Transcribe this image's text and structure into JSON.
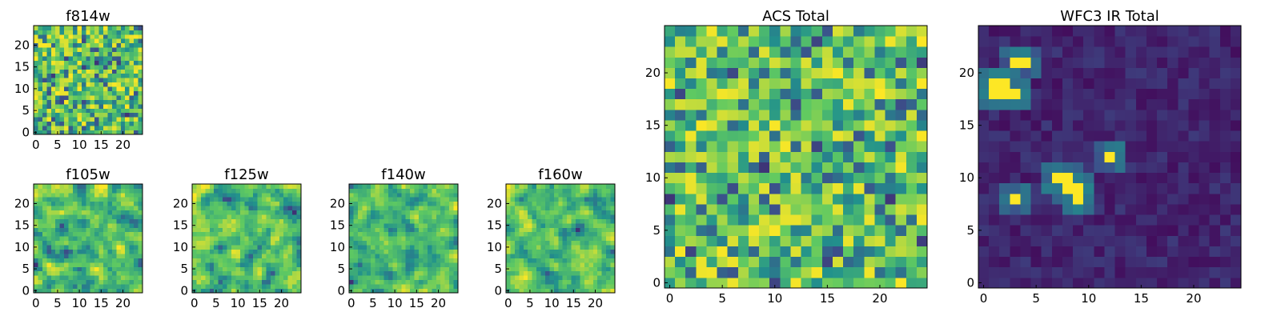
{
  "chart_data": [
    {
      "type": "heatmap",
      "title": "f814w",
      "colormap": "viridis",
      "xlim": [
        0,
        24
      ],
      "ylim": [
        0,
        24
      ],
      "x_ticks": [
        "0",
        "5",
        "10",
        "15",
        "20"
      ],
      "y_ticks": [
        "0",
        "5",
        "10",
        "15",
        "20"
      ]
    },
    {
      "type": "heatmap",
      "title": "f105w",
      "colormap": "viridis",
      "xlim": [
        0,
        24
      ],
      "ylim": [
        0,
        24
      ],
      "x_ticks": [
        "0",
        "5",
        "10",
        "15",
        "20"
      ],
      "y_ticks": [
        "0",
        "5",
        "10",
        "15",
        "20"
      ]
    },
    {
      "type": "heatmap",
      "title": "f125w",
      "colormap": "viridis",
      "xlim": [
        0,
        24
      ],
      "ylim": [
        0,
        24
      ],
      "x_ticks": [
        "0",
        "5",
        "10",
        "15",
        "20"
      ],
      "y_ticks": [
        "0",
        "5",
        "10",
        "15",
        "20"
      ]
    },
    {
      "type": "heatmap",
      "title": "f140w",
      "colormap": "viridis",
      "xlim": [
        0,
        24
      ],
      "ylim": [
        0,
        24
      ],
      "x_ticks": [
        "0",
        "5",
        "10",
        "15",
        "20"
      ],
      "y_ticks": [
        "0",
        "5",
        "10",
        "15",
        "20"
      ]
    },
    {
      "type": "heatmap",
      "title": "f160w",
      "colormap": "viridis",
      "xlim": [
        0,
        24
      ],
      "ylim": [
        0,
        24
      ],
      "x_ticks": [
        "0",
        "5",
        "10",
        "15",
        "20"
      ],
      "y_ticks": [
        "0",
        "5",
        "10",
        "15",
        "20"
      ]
    },
    {
      "type": "heatmap",
      "title": "ACS Total",
      "colormap": "viridis",
      "xlim": [
        0,
        24
      ],
      "ylim": [
        0,
        24
      ],
      "x_ticks": [
        "0",
        "5",
        "10",
        "15",
        "20"
      ],
      "y_ticks": [
        "0",
        "5",
        "10",
        "15",
        "20"
      ]
    },
    {
      "type": "heatmap",
      "title": "WFC3 IR Total",
      "colormap": "viridis",
      "xlim": [
        0,
        24
      ],
      "ylim": [
        0,
        24
      ],
      "x_ticks": [
        "0",
        "5",
        "10",
        "15",
        "20"
      ],
      "y_ticks": [
        "0",
        "5",
        "10",
        "15",
        "20"
      ],
      "bright_pixels": [
        [
          3,
          21
        ],
        [
          4,
          21
        ],
        [
          1,
          19
        ],
        [
          2,
          19
        ],
        [
          1,
          18
        ],
        [
          2,
          18
        ],
        [
          3,
          18
        ],
        [
          12,
          12
        ],
        [
          7,
          10
        ],
        [
          8,
          10
        ],
        [
          8,
          9
        ],
        [
          9,
          9
        ],
        [
          3,
          8
        ],
        [
          9,
          8
        ]
      ]
    }
  ]
}
